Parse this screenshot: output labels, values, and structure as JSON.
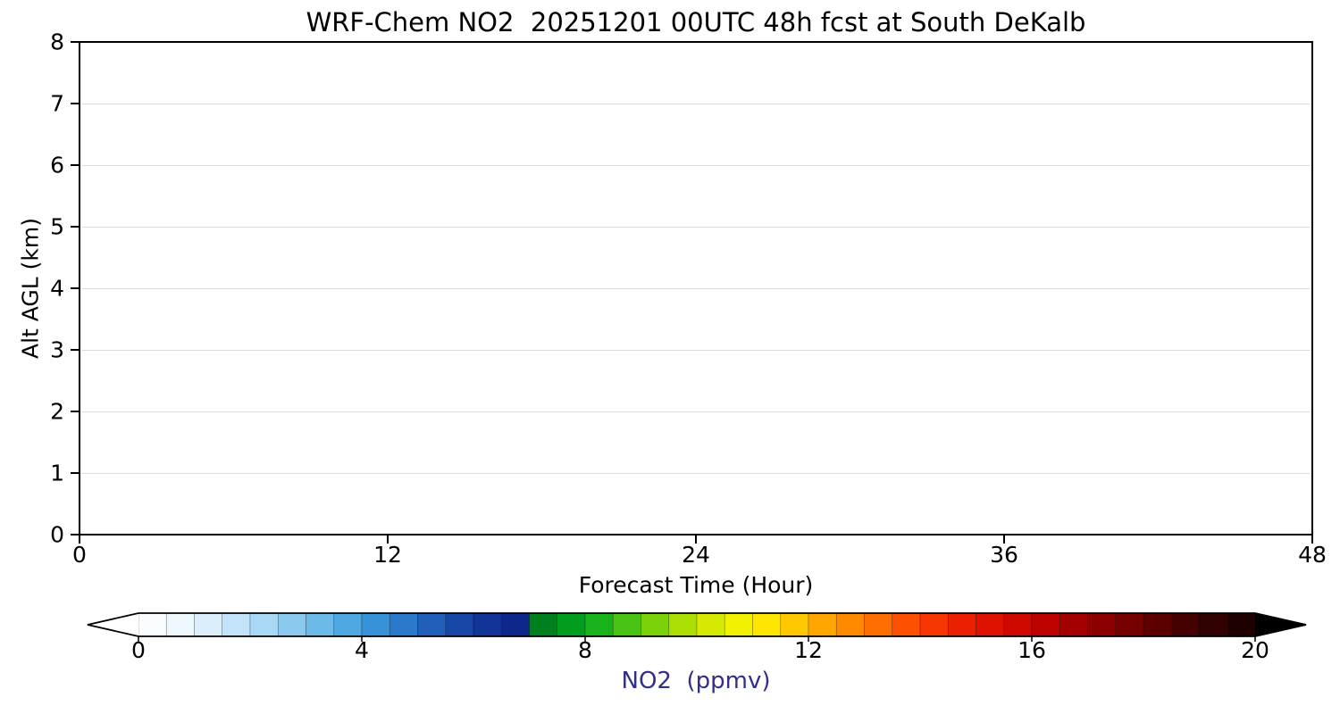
{
  "chart_data": {
    "type": "heatmap",
    "title": "WRF-Chem NO2  20251201 00UTC 48h fcst at South DeKalb",
    "xlabel": "Forecast Time (Hour)",
    "ylabel": "Alt AGL (km)",
    "xlim": [
      0,
      48
    ],
    "ylim": [
      0,
      8
    ],
    "x_ticks": [
      0,
      12,
      24,
      36,
      48
    ],
    "y_ticks": [
      0,
      1,
      2,
      3,
      4,
      5,
      6,
      7,
      8
    ],
    "grid": {
      "horizontal": true,
      "vertical": false,
      "color": "#dcdcdc"
    },
    "series_note": "Plot panel is blank/white: no NO2 values visible for forecast hours 0-48 at altitudes 0-8 km",
    "colorbar": {
      "label": "NO2  (ppmv)",
      "label_color": "#30308a",
      "ticks": [
        0,
        4,
        8,
        12,
        16,
        20
      ],
      "value_min": 0,
      "value_max": 20,
      "segment_step": 0.5,
      "extend": "both",
      "under_color": "#ffffff",
      "over_color": "#000000",
      "stops": [
        [
          0,
          "#ffffff"
        ],
        [
          0.5,
          "#f5fbfe"
        ],
        [
          1,
          "#e4f4fc"
        ],
        [
          1.5,
          "#cfeafa"
        ],
        [
          2,
          "#b6def6"
        ],
        [
          2.5,
          "#9ad1f1"
        ],
        [
          3,
          "#7cc2ec"
        ],
        [
          3.5,
          "#5db1e6"
        ],
        [
          4,
          "#3f9ede"
        ],
        [
          4.5,
          "#2f86d2"
        ],
        [
          5,
          "#246cc2"
        ],
        [
          5.5,
          "#1b52b1"
        ],
        [
          6,
          "#143c9f"
        ],
        [
          6.5,
          "#102b90"
        ],
        [
          6.99,
          "#0e2287"
        ],
        [
          7,
          "#00701c"
        ],
        [
          7.5,
          "#008f1e"
        ],
        [
          8,
          "#00aa1f"
        ],
        [
          8.5,
          "#2fbc16"
        ],
        [
          9,
          "#63cb0d"
        ],
        [
          9.5,
          "#95d905"
        ],
        [
          10,
          "#c3e400"
        ],
        [
          10.5,
          "#e7ef00"
        ],
        [
          11,
          "#fdf200"
        ],
        [
          11.5,
          "#ffd900"
        ],
        [
          12,
          "#ffb600"
        ],
        [
          12.5,
          "#ff9800"
        ],
        [
          13,
          "#ff7c00"
        ],
        [
          13.5,
          "#ff5f00"
        ],
        [
          14,
          "#fb4100"
        ],
        [
          14.5,
          "#f02900"
        ],
        [
          15,
          "#e41700"
        ],
        [
          15.5,
          "#d60c00"
        ],
        [
          16,
          "#c70500"
        ],
        [
          16.5,
          "#b00000"
        ],
        [
          17,
          "#980000"
        ],
        [
          17.5,
          "#800000"
        ],
        [
          18,
          "#680000"
        ],
        [
          18.5,
          "#500000"
        ],
        [
          19,
          "#3a0000"
        ],
        [
          19.5,
          "#270000"
        ],
        [
          20,
          "#170000"
        ]
      ]
    }
  }
}
